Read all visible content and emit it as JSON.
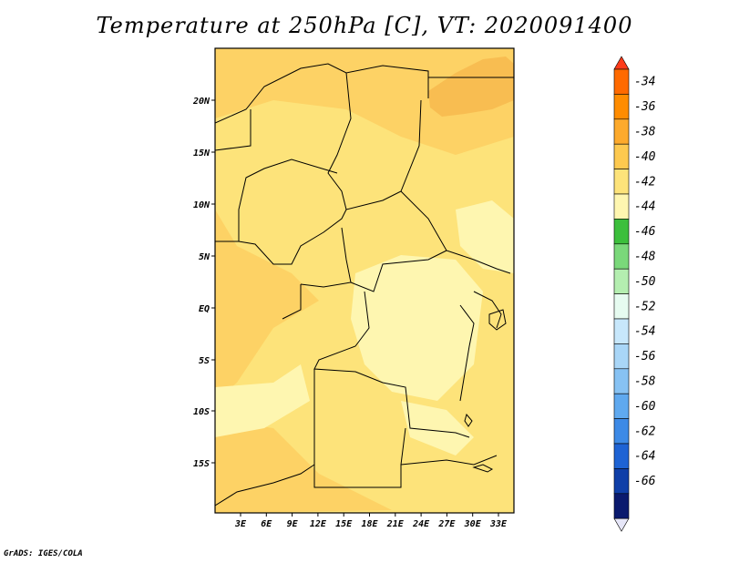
{
  "title": "Temperature at 250hPa [C], VT: 2020091400",
  "footer": "GrADS: IGES/COLA",
  "map": {
    "lat_labels": [
      "20N",
      "15N",
      "10N",
      "5N",
      "EQ",
      "5S",
      "10S",
      "15S"
    ],
    "lon_labels": [
      "3E",
      "6E",
      "9E",
      "12E",
      "15E",
      "18E",
      "21E",
      "24E",
      "27E",
      "30E",
      "33E"
    ],
    "fill_colors": {
      "base": "#fde37a",
      "warm": "#fdd265",
      "cool": "#fef6b0",
      "hot": "#f8bd51"
    }
  },
  "colorbar": {
    "labels": [
      "-34",
      "-36",
      "-38",
      "-40",
      "-42",
      "-44",
      "-46",
      "-48",
      "-50",
      "-52",
      "-54",
      "-56",
      "-58",
      "-60",
      "-62",
      "-64",
      "-66"
    ],
    "colors": [
      "#ff6a00",
      "#ff8c00",
      "#fdaa2c",
      "#fdc94f",
      "#fde37a",
      "#fef6b0",
      "#3cbf3c",
      "#7ad87a",
      "#b4eeb0",
      "#e6fbf0",
      "#c7e7fb",
      "#a9d6f7",
      "#87c2f3",
      "#5fa9ef",
      "#3d8ae6",
      "#1e63d4",
      "#0f3fa8",
      "#0a1a6e"
    ],
    "top_arrow_color": "#ff3b1a",
    "bottom_arrow_color": "#e6e6f8"
  }
}
